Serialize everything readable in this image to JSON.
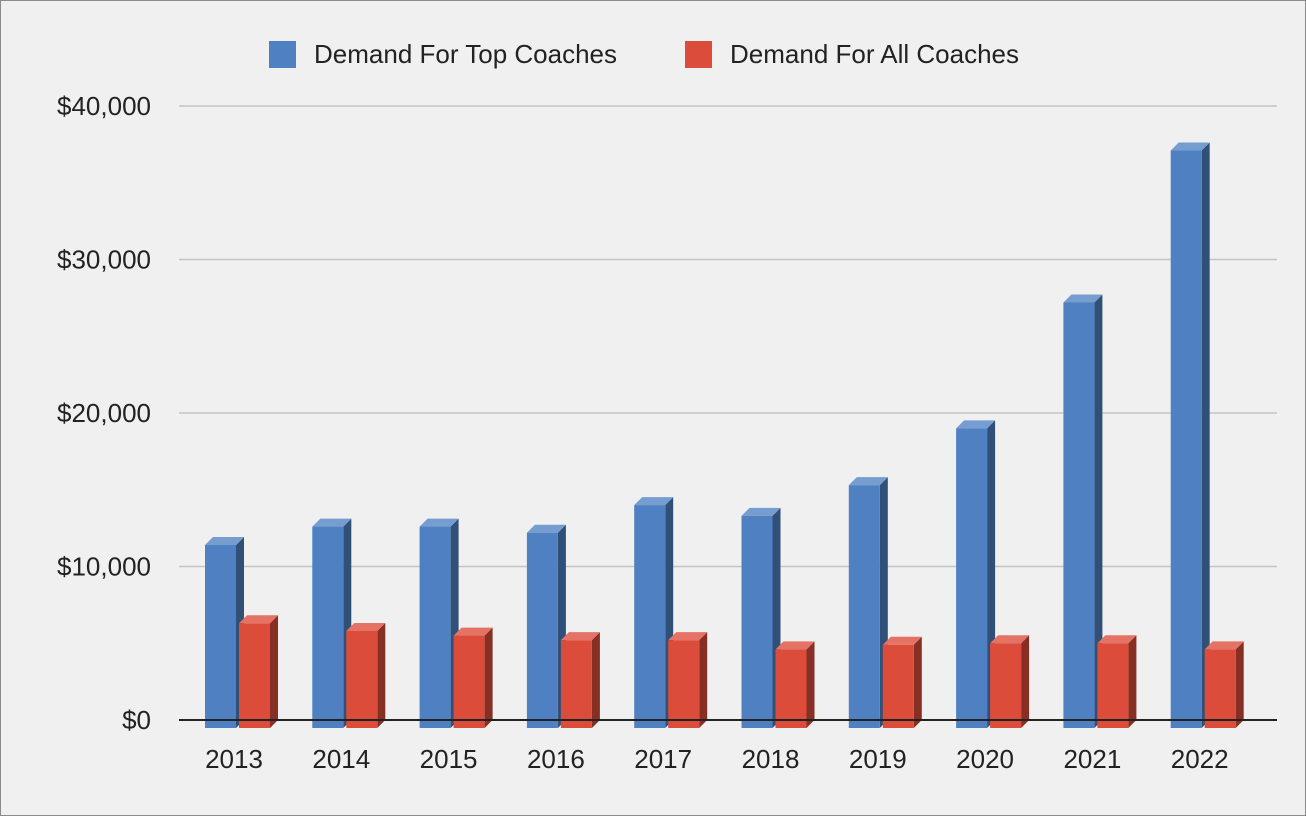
{
  "chart_data": {
    "type": "bar",
    "style": "3d-clustered-column",
    "title": "",
    "xlabel": "",
    "ylabel": "",
    "categories": [
      "2013",
      "2014",
      "2015",
      "2016",
      "2017",
      "2018",
      "2019",
      "2020",
      "2021",
      "2022"
    ],
    "series": [
      {
        "name": "Demand For Top Coaches",
        "color": "#4f81c2",
        "values": [
          11400,
          12600,
          12600,
          12200,
          14000,
          13300,
          15300,
          19000,
          27200,
          37100
        ]
      },
      {
        "name": "Demand For All Coaches",
        "color": "#dc4c3a",
        "values": [
          6300,
          5800,
          5500,
          5200,
          5200,
          4600,
          4900,
          5000,
          5000,
          4600
        ]
      }
    ],
    "ylim": [
      0,
      40000
    ],
    "yticks": [
      0,
      10000,
      20000,
      30000,
      40000
    ],
    "ytick_labels": [
      "$0",
      "$10,000",
      "$20,000",
      "$30,000",
      "$40,000"
    ],
    "grid": true,
    "legend_position": "top-center"
  }
}
